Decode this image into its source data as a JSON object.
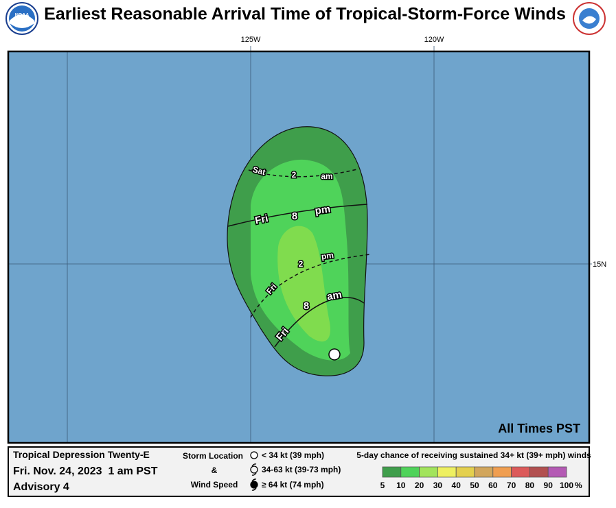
{
  "header": {
    "title": "Earliest Reasonable Arrival Time of Tropical-Storm-Force Winds",
    "logo": "NOAA"
  },
  "map": {
    "lon_labels": [
      "125W",
      "120W"
    ],
    "lat_labels": [
      "15N"
    ],
    "contours": [
      [
        "Sat",
        "2",
        "am"
      ],
      [
        "Fri",
        "8",
        "pm"
      ],
      [
        "Fri",
        "2",
        "pm"
      ],
      [
        "Fri",
        "8",
        "am"
      ]
    ],
    "note": "All Times PST"
  },
  "info": {
    "storm": "Tropical Depression Twenty-E",
    "time": "Fri. Nov. 24, 2023  1 am PST",
    "advisory": "Advisory 4"
  },
  "key": {
    "title": [
      "Storm Location",
      "&",
      "Wind Speed"
    ],
    "items": [
      "< 34 kt (39 mph)",
      "34-63 kt (39-73 mph)",
      "≥ 64 kt (74 mph)"
    ]
  },
  "legend": {
    "title": "5-day chance of receiving sustained 34+ kt (39+ mph) winds",
    "colors": [
      "#3f9e4b",
      "#4fd35a",
      "#a2e45c",
      "#eef060",
      "#e4d04e",
      "#d2a65c",
      "#f09e50",
      "#dc5a5a",
      "#b25050",
      "#b45ab4"
    ],
    "ticks": [
      5,
      10,
      20,
      30,
      40,
      50,
      60,
      70,
      80,
      90,
      100
    ],
    "unit": "%"
  }
}
